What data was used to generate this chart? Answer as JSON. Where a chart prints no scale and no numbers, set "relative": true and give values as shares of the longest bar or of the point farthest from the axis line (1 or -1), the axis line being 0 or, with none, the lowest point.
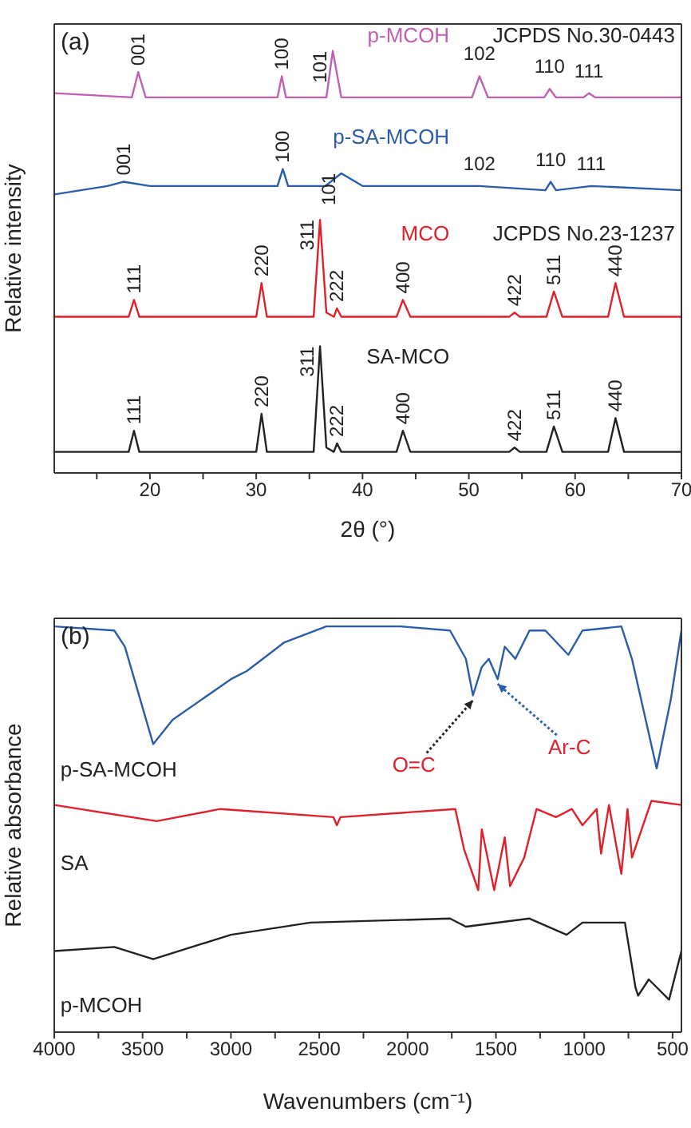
{
  "chart_data": [
    {
      "type": "line",
      "title": "(a)",
      "xlabel": "2θ (°)",
      "ylabel": "Relative intensity",
      "relative": true,
      "xlim": [
        11,
        70
      ],
      "xticks": [
        {
          "value": 15,
          "label": null
        },
        20,
        {
          "value": 25,
          "label": null
        },
        30,
        {
          "value": 35,
          "label": null
        },
        40,
        {
          "value": 45,
          "label": null
        },
        50,
        {
          "value": 55,
          "label": null
        },
        60,
        {
          "value": 65,
          "label": null
        },
        70
      ],
      "series": [
        {
          "name": "p-MCOH",
          "color": "#c060b0",
          "x": [
            11,
            18.3,
            18.9,
            19.6,
            32,
            32.4,
            32.8,
            36.6,
            37.2,
            38,
            50.3,
            51,
            51.8,
            57.1,
            57.6,
            58.2,
            60.8,
            61.3,
            61.9,
            70
          ],
          "values": [
            0.9,
            0.89,
            0.95,
            0.89,
            0.89,
            0.94,
            0.89,
            0.89,
            1,
            0.89,
            0.89,
            0.94,
            0.89,
            0.89,
            0.91,
            0.89,
            0.89,
            0.9,
            0.89,
            0.89
          ]
        },
        {
          "name": "p-SA-MCOH",
          "color": "#2a5caa",
          "x": [
            11,
            16,
            17.5,
            20,
            25,
            32,
            32.5,
            33,
            36.5,
            38,
            40,
            51,
            57.2,
            57.7,
            58.2,
            61.5,
            70
          ],
          "values": [
            0.66,
            0.68,
            0.69,
            0.68,
            0.68,
            0.68,
            0.72,
            0.68,
            0.68,
            0.71,
            0.68,
            0.68,
            0.67,
            0.69,
            0.67,
            0.68,
            0.67
          ]
        },
        {
          "name": "MCO",
          "color": "#e0202a",
          "x": [
            11,
            18,
            18.5,
            19,
            30,
            30.5,
            31,
            35.4,
            36,
            36.6,
            37.3,
            37.6,
            38,
            43.2,
            43.8,
            44.5,
            53.8,
            54.3,
            54.8,
            57.3,
            58,
            58.8,
            63.1,
            63.8,
            64.6,
            70
          ],
          "values": [
            0.37,
            0.37,
            0.41,
            0.37,
            0.37,
            0.45,
            0.37,
            0.37,
            0.6,
            0.38,
            0.37,
            0.39,
            0.37,
            0.37,
            0.41,
            0.37,
            0.37,
            0.38,
            0.37,
            0.37,
            0.43,
            0.37,
            0.37,
            0.45,
            0.37,
            0.37
          ]
        },
        {
          "name": "SA-MCO",
          "color": "#222222",
          "x": [
            11,
            18,
            18.5,
            19,
            30,
            30.5,
            31,
            35.4,
            36,
            36.6,
            37.3,
            37.6,
            38,
            43.2,
            43.8,
            44.5,
            53.8,
            54.3,
            54.8,
            57.3,
            58,
            58.8,
            63.1,
            63.8,
            64.6,
            70
          ],
          "values": [
            0.05,
            0.05,
            0.1,
            0.05,
            0.05,
            0.14,
            0.05,
            0.05,
            0.3,
            0.06,
            0.05,
            0.07,
            0.05,
            0.05,
            0.1,
            0.05,
            0.05,
            0.06,
            0.05,
            0.05,
            0.11,
            0.05,
            0.05,
            0.13,
            0.05,
            0.05
          ]
        }
      ],
      "annotations": [
        {
          "text": "001",
          "x": 18.9,
          "y": 0.95
        },
        {
          "text": "100",
          "x": 32.4,
          "y": 0.94
        },
        {
          "text": "101",
          "x": 37.2,
          "y": 1
        },
        {
          "text": "102",
          "x": 51,
          "y": 0.94
        },
        {
          "text": "110",
          "x": 57.6,
          "y": 0.91
        },
        {
          "text": "111",
          "x": 61.3,
          "y": 0.9
        },
        "JCPDS No.30-0443",
        {
          "text": "001",
          "x": 17.5,
          "y": 0.69
        },
        {
          "text": "100",
          "x": 32.5,
          "y": 0.72
        },
        {
          "text": "101",
          "x": 38,
          "y": 0.71
        },
        {
          "text": "102",
          "x": 51,
          "y": 0.68
        },
        {
          "text": "110",
          "x": 57.7,
          "y": 0.69
        },
        {
          "text": "111",
          "x": 61.5,
          "y": 0.68
        },
        {
          "text": "111",
          "x": 18.5,
          "y": 0.41
        },
        {
          "text": "220",
          "x": 30.5,
          "y": 0.45
        },
        {
          "text": "311",
          "x": 36,
          "y": 0.6
        },
        {
          "text": "222",
          "x": 37.6,
          "y": 0.39
        },
        {
          "text": "400",
          "x": 43.8,
          "y": 0.41
        },
        {
          "text": "422",
          "x": 54.3,
          "y": 0.38
        },
        {
          "text": "511",
          "x": 58,
          "y": 0.43
        },
        {
          "text": "440",
          "x": 63.8,
          "y": 0.45
        },
        "JCPDS  No.23-1237",
        {
          "text": "111",
          "x": 18.5,
          "y": 0.1
        },
        {
          "text": "220",
          "x": 30.5,
          "y": 0.14
        },
        {
          "text": "311",
          "x": 36,
          "y": 0.3
        },
        {
          "text": "222",
          "x": 37.6,
          "y": 0.07
        },
        {
          "text": "400",
          "x": 43.8,
          "y": 0.1
        },
        {
          "text": "422",
          "x": 54.3,
          "y": 0.06
        },
        {
          "text": "511",
          "x": 58,
          "y": 0.11
        },
        {
          "text": "440",
          "x": 63.8,
          "y": 0.13
        }
      ]
    },
    {
      "type": "line",
      "title": "(b)",
      "xlabel": "Wavenumbers (cm⁻¹)",
      "ylabel": "Relative absorbance",
      "relative": true,
      "xlim": [
        4000,
        450
      ],
      "xticks": [
        4000,
        {
          "value": 3750,
          "label": null
        },
        3500,
        {
          "value": 3250,
          "label": null
        },
        3000,
        {
          "value": 2750,
          "label": null
        },
        2500,
        {
          "value": 2250,
          "label": null
        },
        2000,
        {
          "value": 1750,
          "label": null
        },
        1500,
        {
          "value": 1250,
          "label": null
        },
        1000,
        {
          "value": 750,
          "label": null
        },
        500
      ],
      "series": [
        {
          "name": "p-SA-MCOH",
          "color": "#2a5caa",
          "x": [
            4000,
            3660,
            3600,
            3440,
            3330,
            3000,
            2910,
            2700,
            2460,
            2040,
            1760,
            1670,
            1630,
            1580,
            1540,
            1490,
            1450,
            1390,
            1310,
            1220,
            1090,
            1010,
            790,
            730,
            590,
            510,
            450
          ],
          "values": [
            1,
            0.99,
            0.95,
            0.71,
            0.77,
            0.87,
            0.89,
            0.96,
            1,
            1,
            0.99,
            0.92,
            0.83,
            0.9,
            0.92,
            0.87,
            0.95,
            0.92,
            0.99,
            0.99,
            0.93,
            0.99,
            1,
            0.92,
            0.65,
            0.82,
            0.99
          ]
        },
        {
          "name": "SA",
          "color": "#e0202a",
          "x": [
            4000,
            3420,
            3060,
            2420,
            2400,
            2380,
            1730,
            1680,
            1600,
            1580,
            1510,
            1450,
            1420,
            1340,
            1270,
            1160,
            1070,
            1010,
            930,
            905,
            860,
            790,
            755,
            730,
            620,
            450
          ],
          "values": [
            0.56,
            0.52,
            0.55,
            0.53,
            0.51,
            0.53,
            0.55,
            0.45,
            0.35,
            0.5,
            0.35,
            0.48,
            0.36,
            0.43,
            0.55,
            0.53,
            0.55,
            0.51,
            0.55,
            0.44,
            0.56,
            0.39,
            0.55,
            0.43,
            0.57,
            0.56
          ]
        },
        {
          "name": "p-MCOH",
          "color": "#222222",
          "x": [
            4000,
            3660,
            3440,
            3000,
            2550,
            1760,
            1670,
            1310,
            1100,
            1010,
            770,
            710,
            695,
            635,
            520,
            450
          ],
          "values": [
            0.2,
            0.21,
            0.18,
            0.24,
            0.27,
            0.28,
            0.26,
            0.28,
            0.24,
            0.27,
            0.27,
            0.11,
            0.09,
            0.13,
            0.08,
            0.2
          ]
        }
      ],
      "annotations": [
        {
          "text": "O=C",
          "x": 1630,
          "y": 0.83
        },
        {
          "text": "Ar-C",
          "x": 1490,
          "y": 0.87
        }
      ]
    }
  ]
}
